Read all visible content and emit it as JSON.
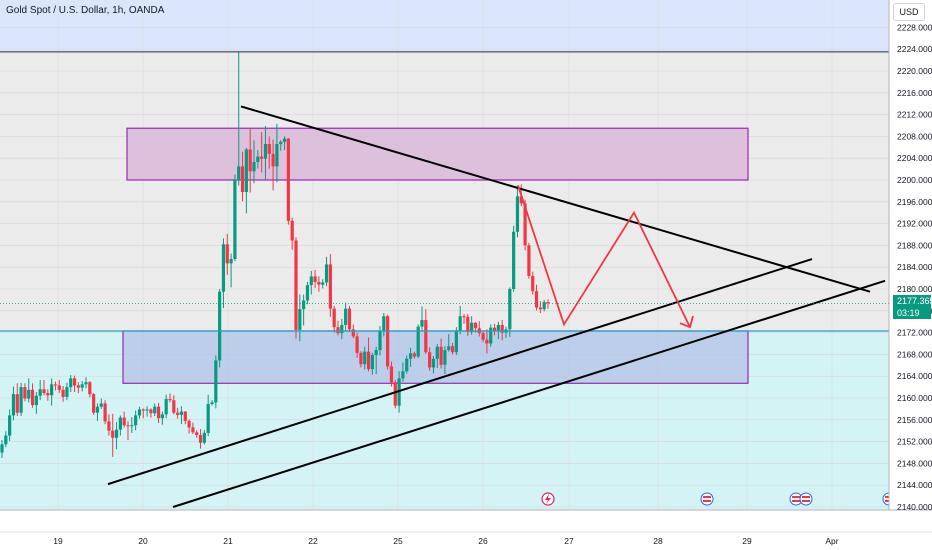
{
  "header": {
    "title": "Gold Spot / U.S. Dollar, 1h, OANDA",
    "currency_label": "USD"
  },
  "last_price": {
    "value": "2177.365",
    "countdown": "03:19"
  },
  "colors": {
    "up": "#089981",
    "down": "#f23645",
    "resistance_zone_bg": "#d9b8d9",
    "support_zone_bg": "#b7c7e6",
    "upper_band": "#dbe6fd",
    "lower_band": "#d4f3f5",
    "projection": "#f23645"
  },
  "chart_data": {
    "type": "candlestick",
    "symbol": "XAUUSD",
    "ylim": [
      2140,
      2228
    ],
    "y_ticks": [
      "2140.000",
      "2144.000",
      "2148.000",
      "2152.000",
      "2156.000",
      "2160.000",
      "2164.000",
      "2168.000",
      "2172.000",
      "2176.000",
      "2180.000",
      "2184.000",
      "2188.000",
      "2192.000",
      "2196.000",
      "2200.000",
      "2204.000",
      "2208.000",
      "2212.000",
      "2216.000",
      "2220.000",
      "2224.000",
      "2228.000"
    ],
    "x_ticks": [
      "19",
      "20",
      "21",
      "22",
      "25",
      "26",
      "27",
      "28",
      "29",
      "Apr"
    ],
    "zones": [
      {
        "name": "resistance",
        "from": 2200.0,
        "to": 2209.5
      },
      {
        "name": "support",
        "from": 2162.7,
        "to": 2172.3
      }
    ],
    "horizontal_lines": [
      2172.3,
      2223.5
    ],
    "trendlines": [
      {
        "from": [
          "20-Mar",
          2213.5
        ],
        "to": [
          "29-Mar",
          2182.5
        ]
      },
      {
        "from": [
          "19-Mar",
          2144.2
        ],
        "to": [
          "28-Mar",
          2185.5
        ]
      },
      {
        "from": [
          "20-Mar",
          2140.0
        ],
        "to": [
          "29-Mar",
          2181.5
        ]
      }
    ],
    "projection_path": [
      [
        "26-Mar",
        2199
      ],
      [
        "26-Mar",
        2173.5
      ],
      [
        "27-Mar",
        2194
      ],
      [
        "28-Mar",
        2173
      ]
    ],
    "candles": [
      [
        2150.0,
        2152.3,
        2149.0,
        2151.5
      ],
      [
        2151.5,
        2153.9,
        2151.0,
        2153.1
      ],
      [
        2153.1,
        2157.9,
        2152.1,
        2156.8
      ],
      [
        2156.8,
        2162.1,
        2155.9,
        2160.7
      ],
      [
        2160.7,
        2162.7,
        2156.7,
        2157.3
      ],
      [
        2157.3,
        2162.8,
        2156.7,
        2162.0
      ],
      [
        2162.0,
        2162.7,
        2159.4,
        2159.9
      ],
      [
        2159.9,
        2163.6,
        2159.2,
        2161.5
      ],
      [
        2161.5,
        2162.7,
        2158.2,
        2158.7
      ],
      [
        2158.7,
        2161.1,
        2157.1,
        2160.4
      ],
      [
        2160.4,
        2163.3,
        2159.6,
        2161.6
      ],
      [
        2161.6,
        2163.3,
        2160.5,
        2160.9
      ],
      [
        2160.9,
        2161.6,
        2159.5,
        2160.5
      ],
      [
        2160.5,
        2163.6,
        2158.6,
        2162.5
      ],
      [
        2162.5,
        2163.0,
        2161.4,
        2162.3
      ],
      [
        2162.3,
        2163.3,
        2160.9,
        2161.5
      ],
      [
        2161.5,
        2162.2,
        2159.3,
        2160.2
      ],
      [
        2160.2,
        2162.8,
        2159.6,
        2162.0
      ],
      [
        2162.0,
        2164.2,
        2161.1,
        2163.6
      ],
      [
        2163.6,
        2164.1,
        2161.1,
        2162.3
      ],
      [
        2162.3,
        2162.9,
        2160.9,
        2161.9
      ],
      [
        2161.9,
        2163.1,
        2161.2,
        2162.5
      ],
      [
        2162.5,
        2163.8,
        2161.8,
        2162.9
      ],
      [
        2162.9,
        2163.1,
        2160.1,
        2160.7
      ],
      [
        2160.7,
        2160.9,
        2156.9,
        2157.3
      ],
      [
        2157.3,
        2159.0,
        2155.8,
        2158.4
      ],
      [
        2158.4,
        2159.9,
        2158.0,
        2159.0
      ],
      [
        2159.0,
        2159.6,
        2155.2,
        2155.7
      ],
      [
        2155.7,
        2157.0,
        2153.1,
        2154.0
      ],
      [
        2154.0,
        2157.1,
        2149.2,
        2152.7
      ],
      [
        2152.7,
        2155.6,
        2150.6,
        2154.2
      ],
      [
        2154.2,
        2156.8,
        2153.1,
        2156.4
      ],
      [
        2156.4,
        2157.5,
        2154.6,
        2155.0
      ],
      [
        2155.0,
        2155.7,
        2152.3,
        2154.9
      ],
      [
        2154.9,
        2156.5,
        2153.6,
        2155.0
      ],
      [
        2155.0,
        2157.7,
        2154.1,
        2156.8
      ],
      [
        2156.8,
        2158.4,
        2156.2,
        2157.9
      ],
      [
        2157.9,
        2158.1,
        2156.3,
        2157.7
      ],
      [
        2157.7,
        2158.5,
        2156.6,
        2157.9
      ],
      [
        2157.9,
        2158.1,
        2156.4,
        2157.2
      ],
      [
        2157.2,
        2159.0,
        2156.7,
        2158.4
      ],
      [
        2158.4,
        2159.1,
        2155.4,
        2156.3
      ],
      [
        2156.3,
        2157.5,
        2155.1,
        2157.0
      ],
      [
        2157.0,
        2160.6,
        2156.3,
        2159.8
      ],
      [
        2159.8,
        2160.8,
        2159.2,
        2159.6
      ],
      [
        2159.6,
        2160.5,
        2157.0,
        2157.3
      ],
      [
        2157.3,
        2158.2,
        2156.2,
        2156.9
      ],
      [
        2156.9,
        2158.5,
        2155.2,
        2157.5
      ],
      [
        2157.5,
        2157.6,
        2155.2,
        2155.8
      ],
      [
        2155.8,
        2156.1,
        2153.5,
        2154.6
      ],
      [
        2154.6,
        2155.5,
        2153.4,
        2153.7
      ],
      [
        2153.7,
        2154.1,
        2152.7,
        2153.2
      ],
      [
        2153.2,
        2154.3,
        2150.7,
        2151.8
      ],
      [
        2151.8,
        2154.1,
        2151.5,
        2153.6
      ],
      [
        2153.6,
        2160.6,
        2153.0,
        2158.9
      ],
      [
        2158.9,
        2159.6,
        2158.6,
        2159.2
      ],
      [
        2159.2,
        2167.8,
        2158.1,
        2166.9
      ],
      [
        2166.9,
        2180.0,
        2165.6,
        2179.5
      ],
      [
        2179.5,
        2189.3,
        2176.5,
        2188.2
      ],
      [
        2188.2,
        2190.1,
        2182.6,
        2184.7
      ],
      [
        2184.7,
        2186.5,
        2180.3,
        2185.5
      ],
      [
        2185.5,
        2201.0,
        2185.1,
        2200.0
      ],
      [
        2200.0,
        2223.5,
        2199.0,
        2202.5
      ],
      [
        2202.5,
        2205.2,
        2196.1,
        2197.8
      ],
      [
        2197.8,
        2205.9,
        2193.9,
        2205.6
      ],
      [
        2205.6,
        2209.4,
        2197.7,
        2201.6
      ],
      [
        2201.6,
        2207.3,
        2199.4,
        2203.3
      ],
      [
        2203.3,
        2205.5,
        2202.1,
        2204.3
      ],
      [
        2204.3,
        2208.8,
        2201.4,
        2203.9
      ],
      [
        2203.9,
        2209.9,
        2200.0,
        2206.6
      ],
      [
        2206.6,
        2208.0,
        2202.1,
        2204.8
      ],
      [
        2204.8,
        2207.4,
        2198.1,
        2202.5
      ],
      [
        2202.5,
        2210.3,
        2199.6,
        2206.6
      ],
      [
        2206.6,
        2207.3,
        2205.4,
        2207.0
      ],
      [
        2207.0,
        2208.0,
        2205.5,
        2207.6
      ],
      [
        2207.6,
        2207.7,
        2191.8,
        2192.5
      ],
      [
        2192.5,
        2193.1,
        2187.2,
        2188.9
      ],
      [
        2188.9,
        2189.5,
        2170.9,
        2172.5
      ],
      [
        2172.5,
        2179.0,
        2170.4,
        2176.3
      ],
      [
        2176.3,
        2179.0,
        2173.3,
        2177.9
      ],
      [
        2177.9,
        2181.3,
        2177.2,
        2180.7
      ],
      [
        2180.7,
        2183.3,
        2179.0,
        2182.3
      ],
      [
        2182.3,
        2183.5,
        2180.2,
        2181.3
      ],
      [
        2181.3,
        2182.3,
        2179.5,
        2180.8
      ],
      [
        2180.8,
        2181.8,
        2180.1,
        2181.2
      ],
      [
        2181.2,
        2185.9,
        2180.5,
        2184.5
      ],
      [
        2184.5,
        2186.4,
        2174.9,
        2176.4
      ],
      [
        2176.4,
        2176.9,
        2172.0,
        2173.0
      ],
      [
        2173.0,
        2174.2,
        2171.5,
        2171.9
      ],
      [
        2171.9,
        2174.5,
        2170.8,
        2173.4
      ],
      [
        2173.4,
        2177.5,
        2172.3,
        2176.4
      ],
      [
        2176.4,
        2176.9,
        2172.1,
        2172.6
      ],
      [
        2172.6,
        2173.5,
        2171.0,
        2171.3
      ],
      [
        2171.3,
        2172.0,
        2167.4,
        2168.3
      ],
      [
        2168.3,
        2168.6,
        2165.6,
        2166.2
      ],
      [
        2166.2,
        2169.4,
        2165.2,
        2168.5
      ],
      [
        2168.5,
        2171.1,
        2164.9,
        2165.3
      ],
      [
        2165.3,
        2168.3,
        2164.3,
        2167.9
      ],
      [
        2167.9,
        2169.4,
        2164.4,
        2168.8
      ],
      [
        2168.8,
        2173.2,
        2167.8,
        2172.3
      ],
      [
        2172.3,
        2175.6,
        2171.3,
        2175.0
      ],
      [
        2175.0,
        2175.3,
        2165.2,
        2165.8
      ],
      [
        2165.8,
        2166.7,
        2162.1,
        2162.9
      ],
      [
        2162.9,
        2163.3,
        2158.1,
        2158.6
      ],
      [
        2158.6,
        2164.9,
        2157.3,
        2163.6
      ],
      [
        2163.6,
        2166.5,
        2163.0,
        2164.9
      ],
      [
        2164.9,
        2167.8,
        2164.5,
        2167.2
      ],
      [
        2167.2,
        2169.2,
        2165.7,
        2168.2
      ],
      [
        2168.2,
        2168.5,
        2167.2,
        2167.6
      ],
      [
        2167.6,
        2173.5,
        2167.3,
        2173.1
      ],
      [
        2173.1,
        2176.8,
        2172.4,
        2174.3
      ],
      [
        2174.3,
        2176.3,
        2168.1,
        2168.4
      ],
      [
        2168.4,
        2169.3,
        2165.0,
        2165.6
      ],
      [
        2165.6,
        2167.7,
        2164.5,
        2167.2
      ],
      [
        2167.2,
        2169.9,
        2165.5,
        2169.4
      ],
      [
        2169.4,
        2170.9,
        2165.4,
        2166.1
      ],
      [
        2166.1,
        2169.5,
        2164.4,
        2168.8
      ],
      [
        2168.8,
        2171.7,
        2168.5,
        2169.5
      ],
      [
        2169.5,
        2170.1,
        2168.0,
        2168.4
      ],
      [
        2168.4,
        2173.0,
        2167.9,
        2172.3
      ],
      [
        2172.3,
        2176.9,
        2171.7,
        2175.0
      ],
      [
        2175.0,
        2175.4,
        2173.6,
        2174.9
      ],
      [
        2174.9,
        2175.4,
        2171.4,
        2172.1
      ],
      [
        2172.1,
        2175.0,
        2171.6,
        2173.8
      ],
      [
        2173.8,
        2173.9,
        2172.0,
        2172.8
      ],
      [
        2172.8,
        2174.1,
        2171.3,
        2171.9
      ],
      [
        2171.9,
        2172.4,
        2170.2,
        2170.7
      ],
      [
        2170.7,
        2172.6,
        2168.2,
        2170.0
      ],
      [
        2170.0,
        2173.5,
        2169.4,
        2172.9
      ],
      [
        2172.9,
        2173.6,
        2171.5,
        2172.2
      ],
      [
        2172.2,
        2174.0,
        2170.8,
        2173.4
      ],
      [
        2173.4,
        2174.3,
        2170.6,
        2172.0
      ],
      [
        2172.0,
        2173.1,
        2171.0,
        2172.6
      ],
      [
        2172.6,
        2180.3,
        2171.2,
        2180.0
      ],
      [
        2180.0,
        2191.6,
        2179.5,
        2190.5
      ],
      [
        2190.5,
        2199.0,
        2189.5,
        2197.0
      ],
      [
        2197.0,
        2199.2,
        2195.2,
        2195.7
      ],
      [
        2195.7,
        2196.4,
        2187.1,
        2188.0
      ],
      [
        2188.0,
        2188.5,
        2181.9,
        2182.4
      ],
      [
        2182.4,
        2183.2,
        2179.0,
        2179.6
      ],
      [
        2179.6,
        2180.8,
        2176.1,
        2176.6
      ],
      [
        2176.6,
        2177.8,
        2175.6,
        2176.3
      ],
      [
        2176.3,
        2178.0,
        2175.9,
        2177.6
      ],
      [
        2177.6,
        2178.1,
        2176.4,
        2177.4
      ]
    ]
  }
}
